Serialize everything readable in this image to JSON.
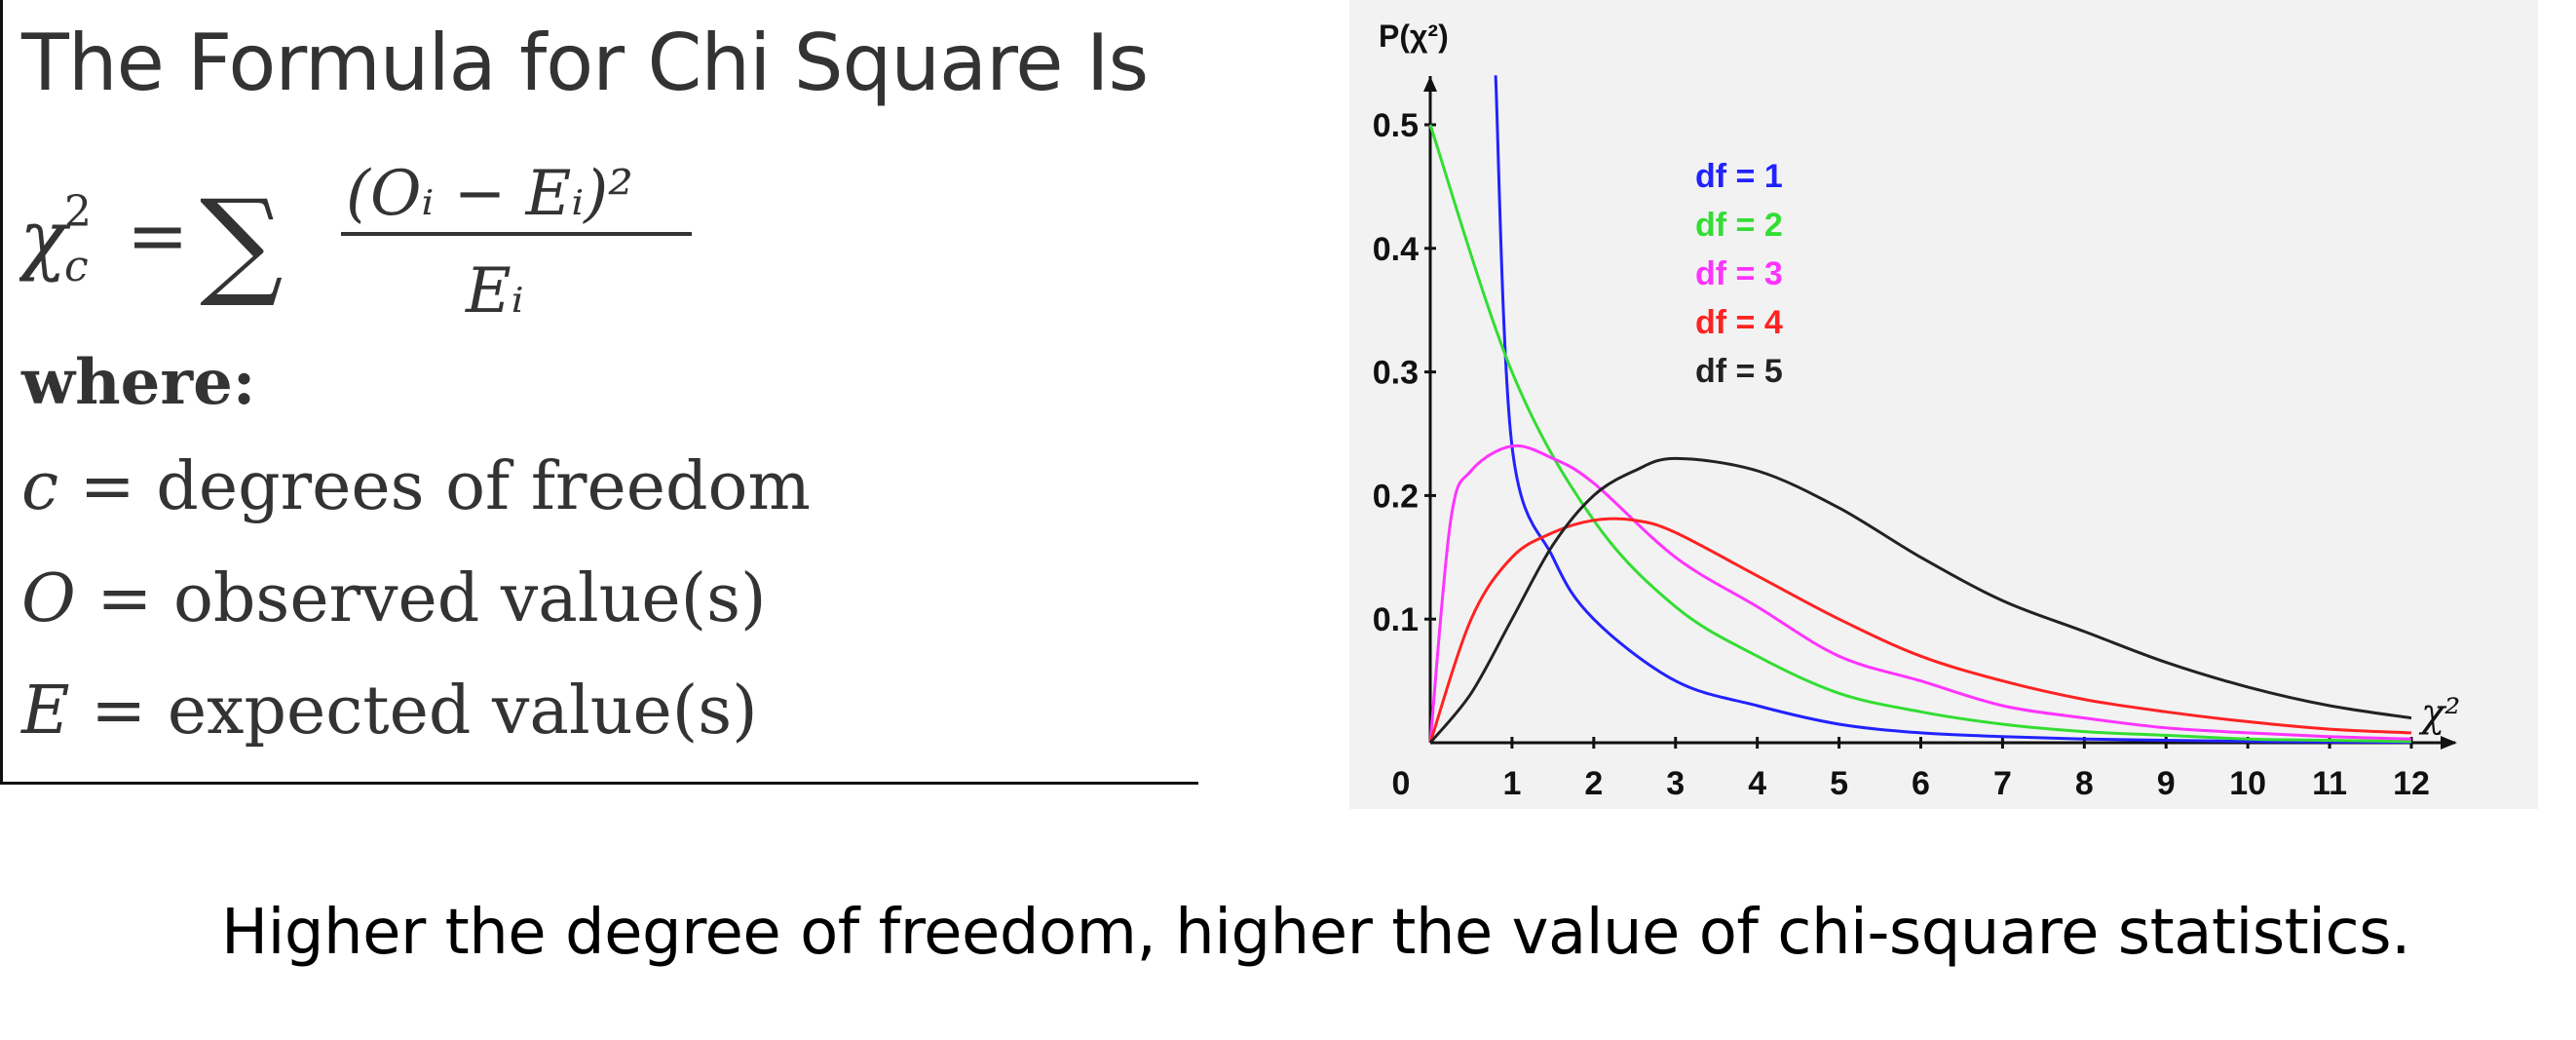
{
  "formula": {
    "title": "The Formula for Chi Square Is",
    "lhs_symbol": "χ",
    "lhs_sup": "2",
    "lhs_sub": "c",
    "equals": "=",
    "sum_symbol": "∑",
    "numerator": "(Oᵢ − Eᵢ)²",
    "denominator": "Eᵢ",
    "where_label": "where:",
    "definitions": [
      {
        "symbol": "c",
        "text": "= degrees of freedom"
      },
      {
        "symbol": "O",
        "text": "= observed value(s)"
      },
      {
        "symbol": "E",
        "text": "= expected value(s)"
      }
    ]
  },
  "caption": "Higher the degree of freedom, higher the value of chi-square statistics.",
  "chart_data": {
    "type": "line",
    "ylabel": "P(χ²)",
    "xlabel": "χ²",
    "xlim": [
      0,
      12
    ],
    "ylim": [
      0,
      0.5
    ],
    "x_ticks": [
      "0",
      "1",
      "2",
      "3",
      "4",
      "5",
      "6",
      "7",
      "8",
      "9",
      "10",
      "11",
      "12"
    ],
    "y_ticks": [
      "0.1",
      "0.2",
      "0.3",
      "0.4",
      "0.5"
    ],
    "grid": false,
    "legend_position": "upper-middle",
    "series": [
      {
        "name": "df = 1",
        "color": "#2222ff",
        "x": [
          0.8,
          1,
          1.5,
          2,
          3,
          4,
          5,
          6,
          7,
          8,
          9,
          10,
          11,
          12
        ],
        "y": [
          0.54,
          0.24,
          0.15,
          0.1,
          0.05,
          0.03,
          0.015,
          0.008,
          0.005,
          0.003,
          0.002,
          0.001,
          0.0006,
          0.0003
        ]
      },
      {
        "name": "df = 2",
        "color": "#33dd33",
        "x": [
          0,
          1,
          2,
          3,
          4,
          5,
          6,
          7,
          8,
          9,
          10,
          11,
          12
        ],
        "y": [
          0.5,
          0.3,
          0.18,
          0.11,
          0.07,
          0.04,
          0.025,
          0.015,
          0.009,
          0.006,
          0.003,
          0.002,
          0.001
        ]
      },
      {
        "name": "df = 3",
        "color": "#ff33ff",
        "x": [
          0,
          0.25,
          0.5,
          1,
          1.5,
          2,
          3,
          4,
          5,
          6,
          7,
          8,
          9,
          10,
          11,
          12
        ],
        "y": [
          0,
          0.18,
          0.22,
          0.24,
          0.23,
          0.21,
          0.15,
          0.11,
          0.07,
          0.05,
          0.03,
          0.02,
          0.012,
          0.008,
          0.005,
          0.003
        ]
      },
      {
        "name": "df = 4",
        "color": "#ff2222",
        "x": [
          0,
          0.5,
          1,
          1.5,
          2,
          2.5,
          3,
          4,
          5,
          6,
          7,
          8,
          9,
          10,
          11,
          12
        ],
        "y": [
          0,
          0.1,
          0.15,
          0.17,
          0.18,
          0.18,
          0.17,
          0.135,
          0.1,
          0.07,
          0.05,
          0.035,
          0.025,
          0.017,
          0.011,
          0.008
        ]
      },
      {
        "name": "df = 5",
        "color": "#222222",
        "x": [
          0,
          0.5,
          1,
          1.5,
          2,
          2.5,
          3,
          4,
          5,
          6,
          7,
          8,
          9,
          10,
          11,
          12
        ],
        "y": [
          0,
          0.04,
          0.1,
          0.16,
          0.2,
          0.22,
          0.23,
          0.22,
          0.19,
          0.15,
          0.115,
          0.09,
          0.065,
          0.045,
          0.03,
          0.02
        ]
      }
    ]
  }
}
